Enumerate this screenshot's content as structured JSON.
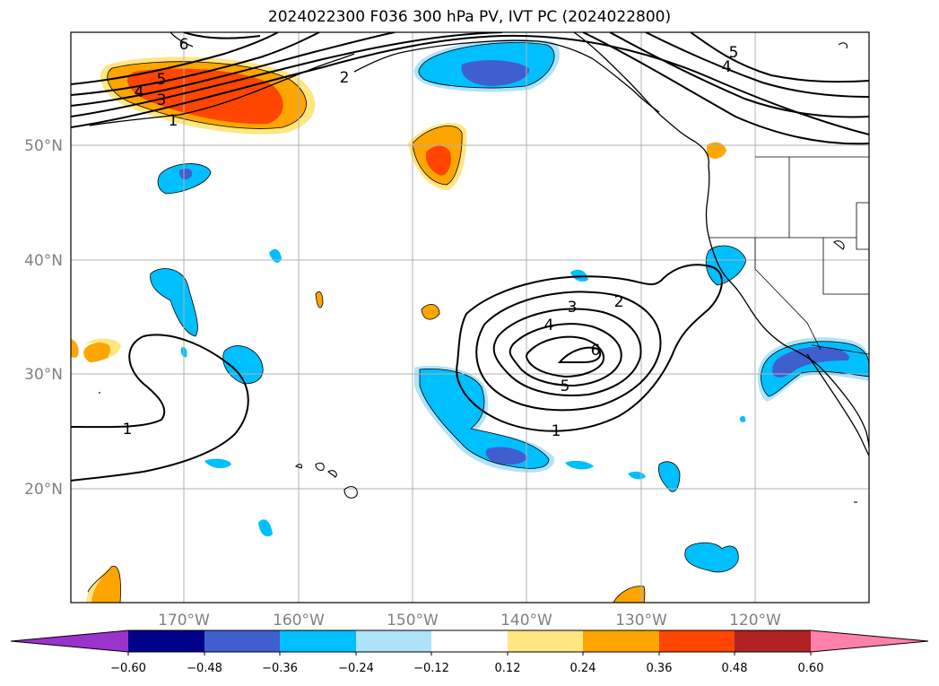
{
  "title": "2024022300 F036 300 hPa PV, IVT PC (2024022800)",
  "lat_labels": [
    "50°N",
    "40°N",
    "30°N",
    "20°N"
  ],
  "lon_labels": [
    "170°W",
    "160°W",
    "150°W",
    "140°W",
    "130°W",
    "120°W"
  ],
  "contour_labels": {
    "c6_nw": "6",
    "c5_nw": "5",
    "c4_nw": "4",
    "c3_nw": "3",
    "c1_nw": "1",
    "c2_n": "2",
    "c5_ne": "5",
    "c4_ne": "4",
    "c3_c": "3",
    "c2_c": "2",
    "c4_c": "4",
    "c6_c": "6",
    "c5_c": "5",
    "c1_c": "1",
    "c1_w": "1"
  },
  "colorbar": {
    "ticks": [
      "−0.60",
      "−0.48",
      "−0.36",
      "−0.24",
      "−0.12",
      "0.12",
      "0.24",
      "0.36",
      "0.48",
      "0.60"
    ],
    "colors": {
      "under": "#9933cc",
      "n1": "#00008b",
      "n2": "#3f5fcf",
      "n3": "#00bfff",
      "n4": "#aee3fa",
      "zero": "#ffffff",
      "p1": "#ffe680",
      "p2": "#ffa500",
      "p3": "#ff4500",
      "p4": "#b22222",
      "over": "#ff80aa"
    }
  }
}
